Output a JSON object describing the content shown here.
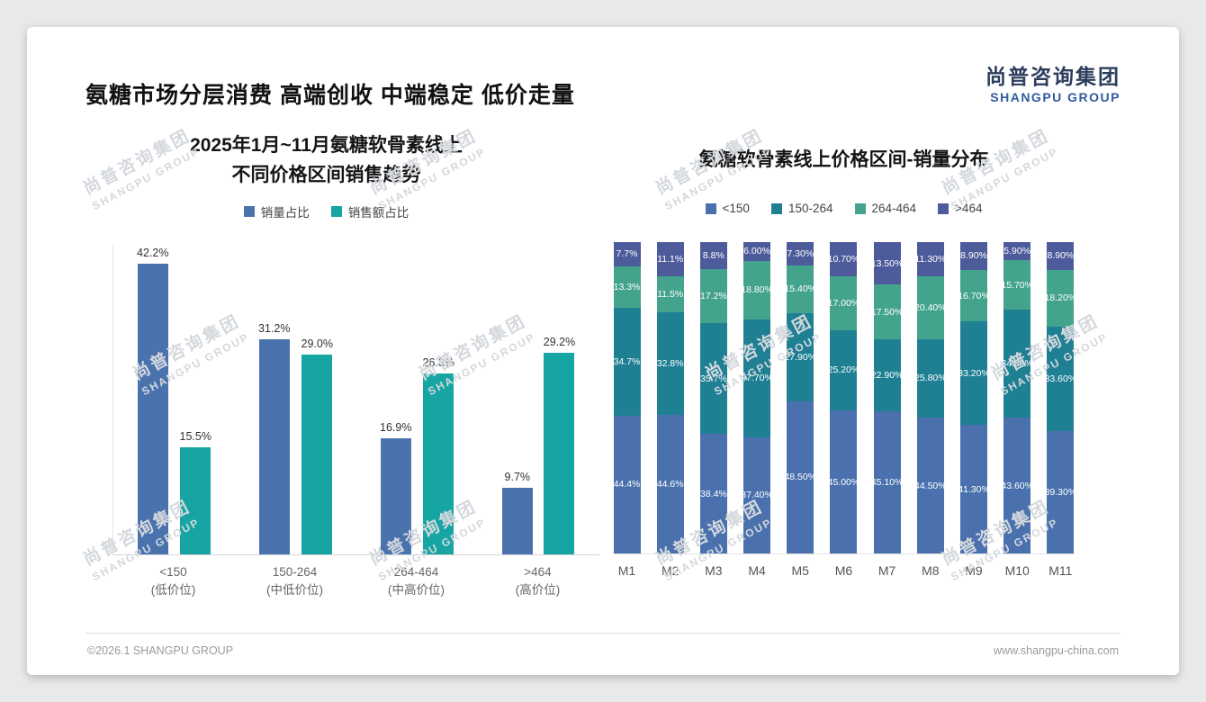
{
  "header": {
    "title": "氨糖市场分层消费 高端创收 中端稳定 低价走量",
    "logo": {
      "cn": "尚普咨询集团",
      "en": "SHANGPU GROUP"
    }
  },
  "colors": {
    "brand_navy": "#2c3e5d",
    "brand_blue": "#2f5b9d",
    "accent_blue": "#4a73ae",
    "accent_teal": "#16a5a3"
  },
  "watermark": {
    "line1": "尚普咨询集团",
    "line2": "SHANGPU GROUP"
  },
  "footer": {
    "copyright": "©2026.1 SHANGPU GROUP",
    "website": "www.shangpu-china.com"
  },
  "chart_data": [
    {
      "type": "bar",
      "title_lines": [
        "2025年1月~11月氨糖软骨素线上",
        "不同价格区间销售趋势"
      ],
      "categories": [
        [
          "<150",
          "(低价位)"
        ],
        [
          "150-264",
          "(中低价位)"
        ],
        [
          "264-464",
          "(中高价位)"
        ],
        [
          ">464",
          "(高价位)"
        ]
      ],
      "series": [
        {
          "name": "销量占比",
          "color": "#4a73ae",
          "values": [
            42.2,
            31.2,
            16.9,
            9.7
          ],
          "labels": [
            "42.2%",
            "31.2%",
            "16.9%",
            "9.7%"
          ]
        },
        {
          "name": "销售额占比",
          "color": "#16a5a3",
          "values": [
            15.5,
            29.0,
            26.3,
            29.2
          ],
          "labels": [
            "15.5%",
            "29.0%",
            "26.3%",
            "29.2%"
          ]
        }
      ],
      "ylim": [
        0,
        45
      ],
      "grid": false,
      "legend_position": "top"
    },
    {
      "type": "stacked-bar",
      "title": "氨糖软骨素线上价格区间-销量分布",
      "categories": [
        "M1",
        "M2",
        "M3",
        "M4",
        "M5",
        "M6",
        "M7",
        "M8",
        "M9",
        "M10",
        "M11"
      ],
      "stack_total": 100,
      "legend_position": "top",
      "series": [
        {
          "name": "<150",
          "color": "#4a71ad",
          "values": [
            44.4,
            44.6,
            38.4,
            37.4,
            48.5,
            45.0,
            45.1,
            44.5,
            41.3,
            43.6,
            39.3
          ],
          "labels": [
            "44.4%",
            "44.6%",
            "38.4%",
            "37.40%",
            "48.50%",
            "45.00%",
            "45.10%",
            "44.50%",
            "41.30%",
            "43.60%",
            "39.30%"
          ]
        },
        {
          "name": "150-264",
          "color": "#1f7f93",
          "values": [
            34.7,
            32.8,
            35.7,
            37.7,
            27.9,
            25.2,
            22.9,
            25.8,
            33.2,
            34.8,
            33.6
          ],
          "labels": [
            "34.7%",
            "32.8%",
            "35.7%",
            "37.70%",
            "27.90%",
            "25.20%",
            "22.90%",
            "25.80%",
            "33.20%",
            "34.80%",
            "33.60%"
          ]
        },
        {
          "name": "264-464",
          "color": "#44a38c",
          "values": [
            13.3,
            11.5,
            17.2,
            18.8,
            15.4,
            17.0,
            17.5,
            20.4,
            16.7,
            15.7,
            18.2
          ],
          "labels": [
            "13.3%",
            "11.5%",
            "17.2%",
            "18.80%",
            "15.40%",
            "17.00%",
            "17.50%",
            "20.40%",
            "16.70%",
            "15.70%",
            "18.20%"
          ]
        },
        {
          "name": ">464",
          "color": "#4d5b9b",
          "values": [
            7.7,
            11.1,
            8.8,
            6.0,
            7.3,
            10.7,
            13.5,
            11.3,
            8.9,
            5.9,
            8.9
          ],
          "labels": [
            "7.7%",
            "11.1%",
            "8.8%",
            "6.00%",
            "7.30%",
            "10.70%",
            "13.50%",
            "11.30%",
            "8.90%",
            "5.90%",
            "8.90%"
          ]
        }
      ]
    }
  ]
}
